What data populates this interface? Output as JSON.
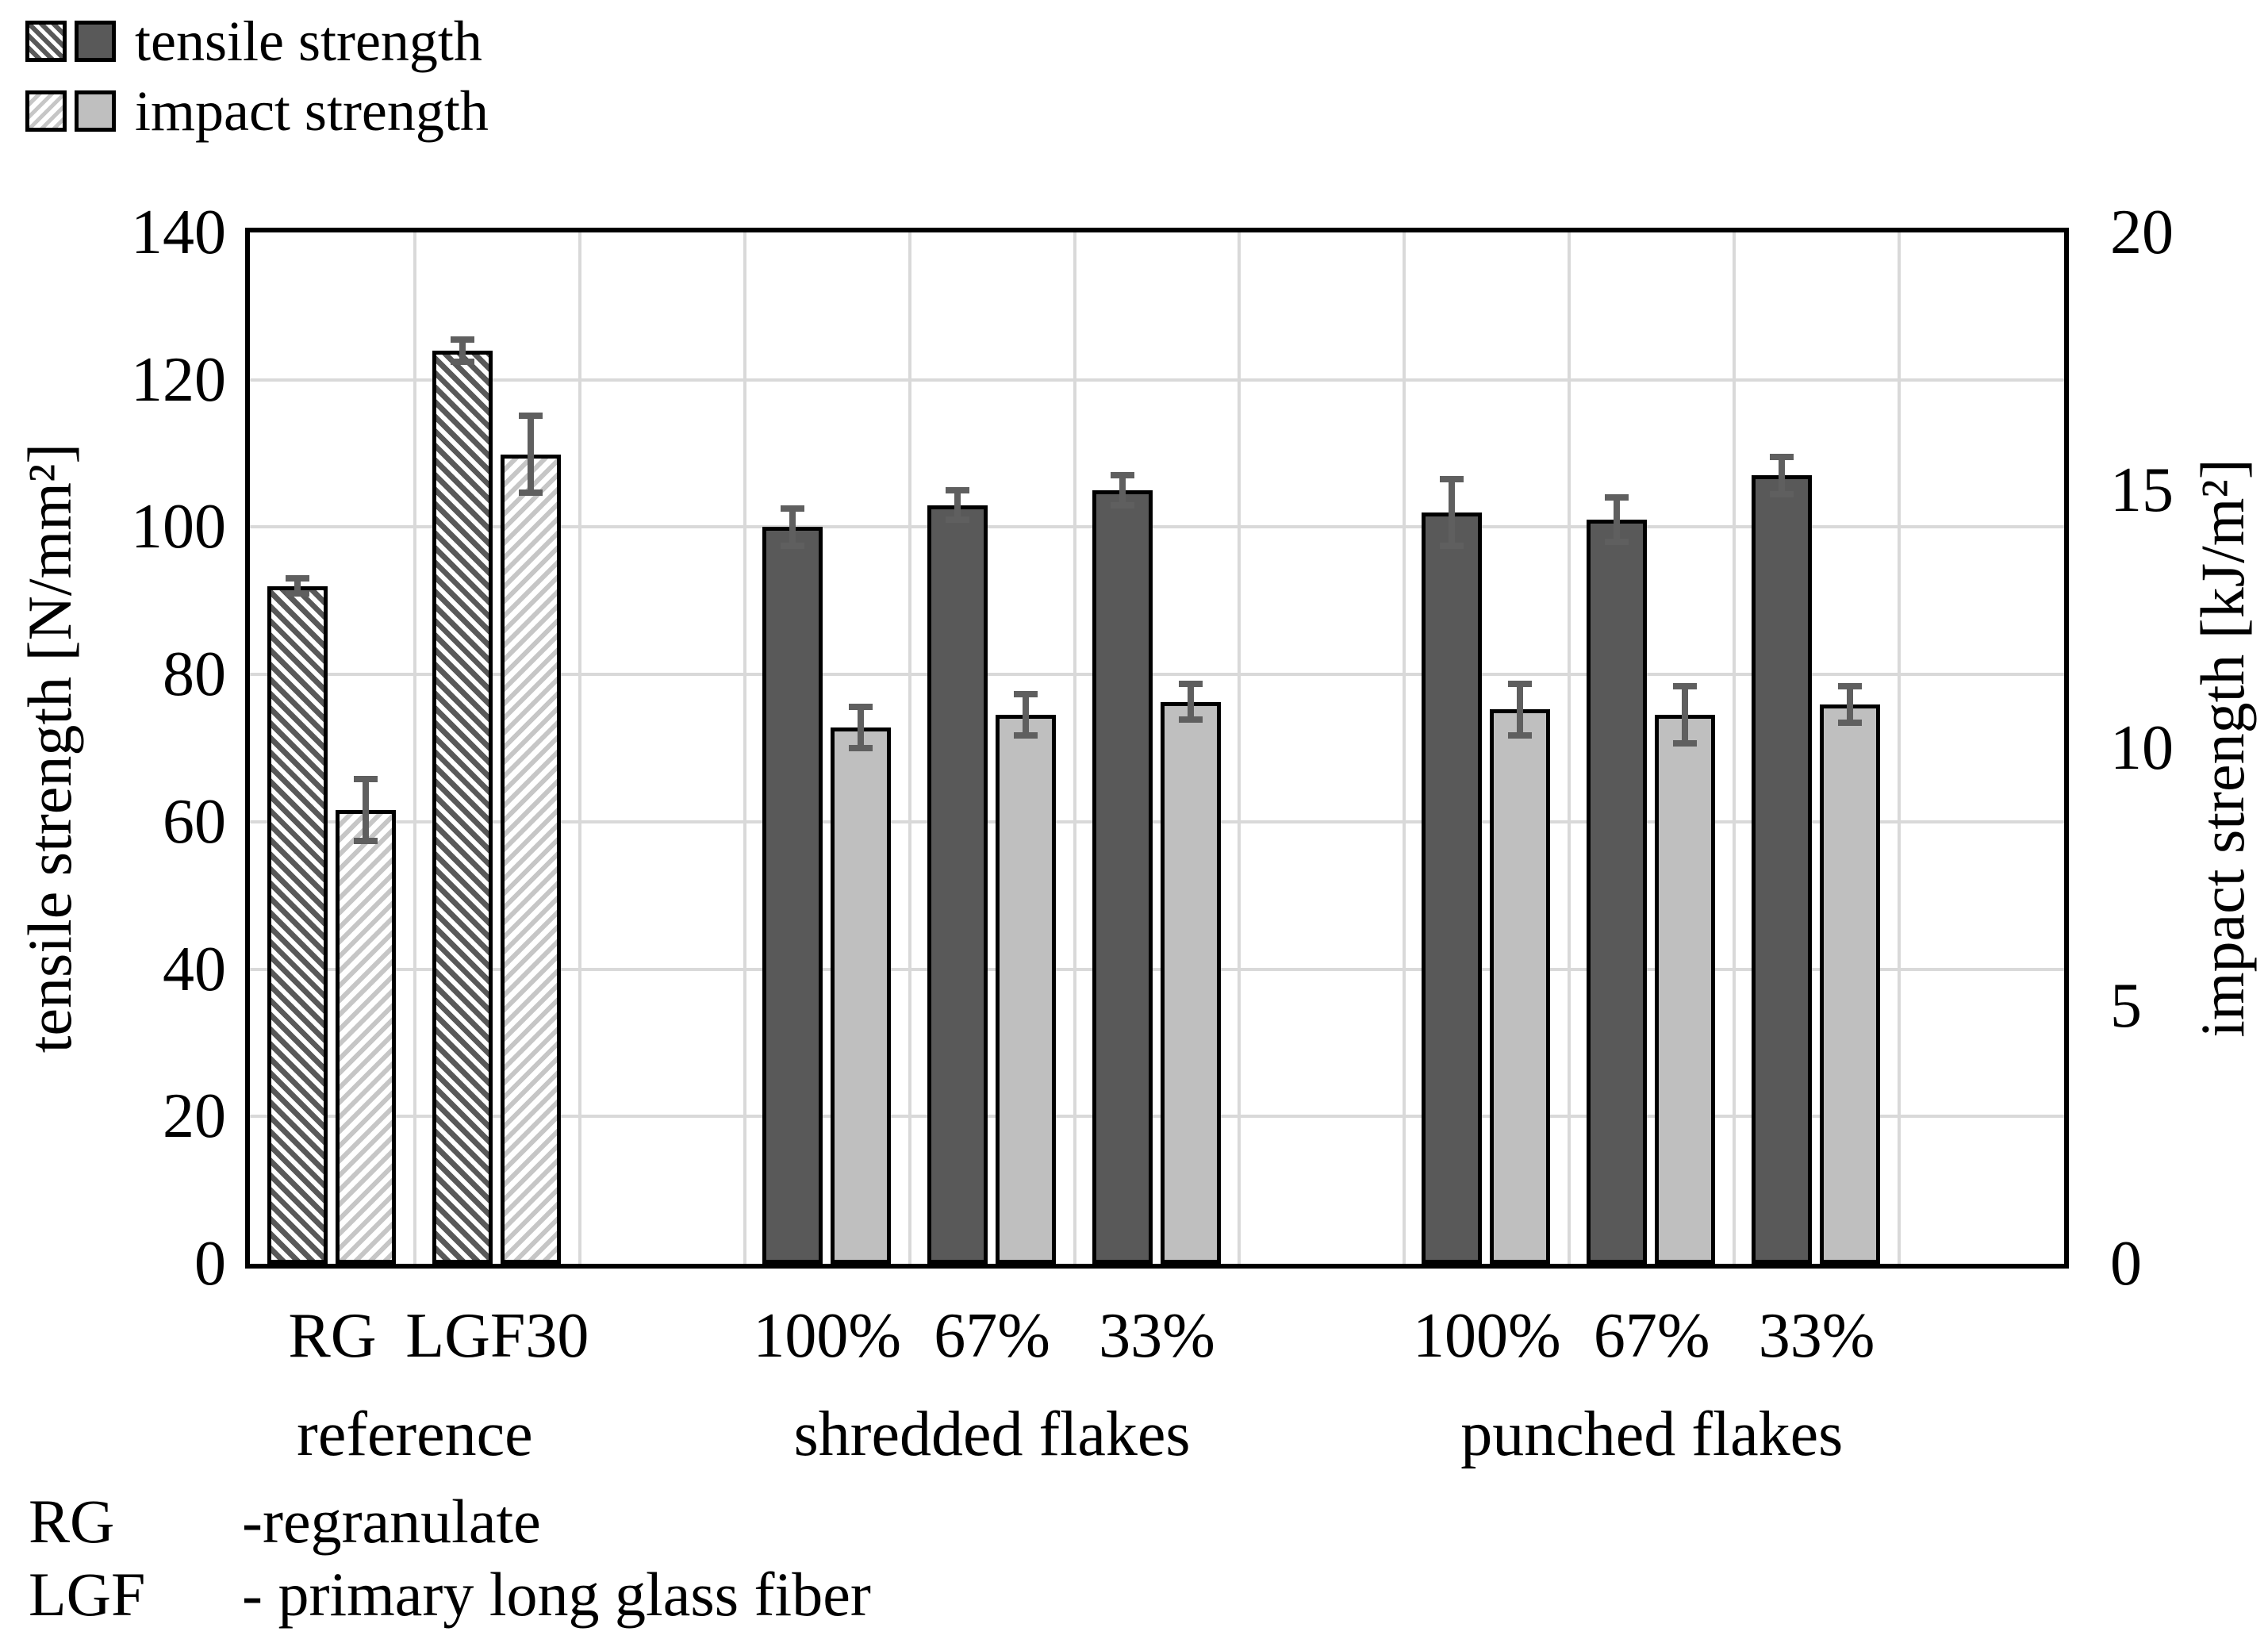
{
  "chart_data": {
    "type": "bar",
    "title": "",
    "axes": {
      "left": {
        "label": "tensile strength [N/mm²]",
        "min": 0,
        "max": 140,
        "ticks": [
          0,
          20,
          40,
          60,
          80,
          100,
          120,
          140
        ]
      },
      "right": {
        "label": "impact strength [kJ/m²]",
        "min": 0,
        "max": 20,
        "ticks": [
          0,
          5,
          10,
          15,
          20
        ]
      }
    },
    "grid": true,
    "legend_position": "top-left",
    "legend": [
      {
        "label": "tensile strength",
        "swatch_hatched": true,
        "swatch_solid_color": "#595959"
      },
      {
        "label": "impact strength",
        "swatch_hatched": true,
        "swatch_solid_color": "#BFBFBF"
      }
    ],
    "groups": [
      {
        "label": "reference",
        "bar_style": "hatched",
        "items": [
          {
            "label": "RG",
            "tensile": {
              "value": 92,
              "err": 1.0
            },
            "impact": {
              "value": 8.8,
              "err": 0.6
            }
          },
          {
            "label": "LGF30",
            "tensile": {
              "value": 124,
              "err": 1.5
            },
            "impact": {
              "value": 15.7,
              "err": 0.75
            }
          }
        ]
      },
      {
        "label": "shredded flakes",
        "bar_style": "solid",
        "items": [
          {
            "label": "100%",
            "tensile": {
              "value": 100,
              "err": 2.5
            },
            "impact": {
              "value": 10.4,
              "err": 0.4
            }
          },
          {
            "label": "67%",
            "tensile": {
              "value": 103,
              "err": 2.0
            },
            "impact": {
              "value": 10.65,
              "err": 0.4
            }
          },
          {
            "label": "33%",
            "tensile": {
              "value": 105,
              "err": 2.0
            },
            "impact": {
              "value": 10.9,
              "err": 0.35
            }
          }
        ]
      },
      {
        "label": "punched flakes",
        "bar_style": "solid",
        "items": [
          {
            "label": "100%",
            "tensile": {
              "value": 102,
              "err": 4.5
            },
            "impact": {
              "value": 10.75,
              "err": 0.5
            }
          },
          {
            "label": "67%",
            "tensile": {
              "value": 101,
              "err": 3.0
            },
            "impact": {
              "value": 10.65,
              "err": 0.55
            }
          },
          {
            "label": "33%",
            "tensile": {
              "value": 107,
              "err": 2.5
            },
            "impact": {
              "value": 10.85,
              "err": 0.35
            }
          }
        ]
      }
    ],
    "footnotes": [
      {
        "term": "RG",
        "definition": "-regranulate"
      },
      {
        "term": "LGF",
        "definition": "- primary long glass fiber"
      }
    ],
    "colors": {
      "bar_dark": "#595959",
      "bar_light": "#BFBFBF",
      "hatch_dark_stripe": "#595959",
      "hatch_light_stripe": "#C6C6C6",
      "gridline": "#D9D9D9",
      "error_bar": "#5F5F5F",
      "border": "#000000",
      "background": "#FFFFFF"
    }
  }
}
